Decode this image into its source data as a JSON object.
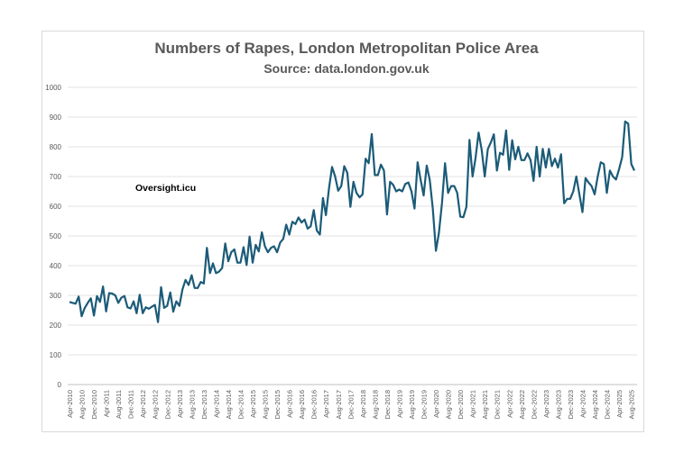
{
  "chart_data": {
    "type": "line",
    "title": "Numbers of Rapes, London Metropolitan Police Area",
    "subtitle": "Source: data.london.gov.uk",
    "annotation": "Oversight.icu",
    "xlabel": "",
    "ylabel": "",
    "ylim": [
      0,
      1000
    ],
    "yticks": [
      0,
      100,
      200,
      300,
      400,
      500,
      600,
      700,
      800,
      900,
      1000
    ],
    "grid": true,
    "legend": "none",
    "x_start": "Apr-2010",
    "x_end": "Sep-2025",
    "xtick_labels": [
      "Apr-2010",
      "Aug-2010",
      "Dec-2010",
      "Apr-2011",
      "Aug-2011",
      "Dec-2011",
      "Apr-2012",
      "Aug-2012",
      "Dec-2012",
      "Apr-2013",
      "Aug-2013",
      "Dec-2013",
      "Apr-2014",
      "Aug-2014",
      "Dec-2014",
      "Apr-2015",
      "Aug-2015",
      "Dec-2015",
      "Apr-2016",
      "Aug-2016",
      "Dec-2016",
      "Apr-2017",
      "Aug-2017",
      "Dec-2017",
      "Apr-2018",
      "Aug-2018",
      "Dec-2018",
      "Apr-2019",
      "Aug-2019",
      "Dec-2019",
      "Apr-2020",
      "Aug-2020",
      "Dec-2020",
      "Apr-2021",
      "Aug-2021",
      "Dec-2021",
      "Apr-2022",
      "Aug-2022",
      "Dec-2022",
      "Apr-2023",
      "Aug-2023",
      "Dec-2023",
      "Apr-2024",
      "Aug-2024",
      "Dec-2024",
      "Apr-2025",
      "Aug-2025"
    ],
    "series": [
      {
        "name": "Rapes",
        "color": "#1b5b78",
        "values": [
          278,
          275,
          272,
          296,
          230,
          258,
          275,
          290,
          232,
          298,
          278,
          330,
          246,
          308,
          306,
          300,
          275,
          292,
          298,
          260,
          256,
          280,
          240,
          302,
          240,
          260,
          255,
          262,
          268,
          210,
          328,
          258,
          265,
          310,
          245,
          280,
          265,
          320,
          352,
          335,
          368,
          325,
          325,
          345,
          340,
          460,
          375,
          408,
          375,
          380,
          392,
          475,
          415,
          445,
          455,
          410,
          410,
          462,
          402,
          498,
          410,
          470,
          448,
          512,
          465,
          445,
          460,
          465,
          445,
          478,
          490,
          538,
          505,
          548,
          540,
          562,
          545,
          555,
          525,
          532,
          587,
          518,
          505,
          628,
          570,
          660,
          732,
          700,
          652,
          668,
          735,
          712,
          598,
          682,
          645,
          630,
          640,
          760,
          745,
          843,
          705,
          705,
          740,
          720,
          572,
          682,
          672,
          650,
          656,
          650,
          675,
          680,
          650,
          592,
          748,
          690,
          636,
          737,
          688,
          590,
          450,
          510,
          610,
          745,
          645,
          668,
          668,
          645,
          565,
          563,
          598,
          823,
          700,
          762,
          848,
          790,
          700,
          792,
          815,
          842,
          720,
          780,
          773,
          855,
          722,
          822,
          758,
          800,
          755,
          755,
          778,
          755,
          685,
          800,
          700,
          793,
          730,
          793,
          735,
          760,
          730,
          775,
          610,
          625,
          625,
          650,
          700,
          640,
          580,
          695,
          680,
          668,
          640,
          700,
          748,
          742,
          645,
          720,
          700,
          690,
          725,
          765,
          885,
          878,
          742,
          720
        ]
      }
    ]
  }
}
